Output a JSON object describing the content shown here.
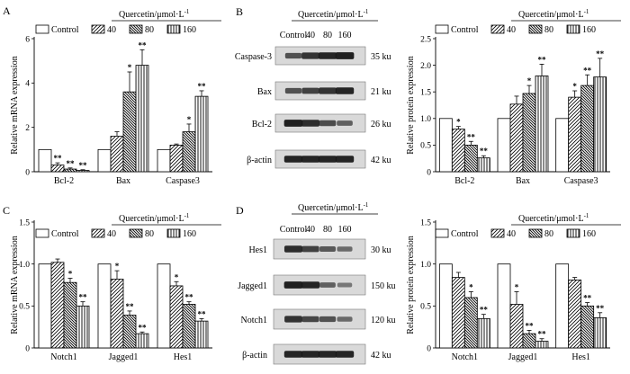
{
  "legend": {
    "title": "Quercetin/μmol·L",
    "title_sup": "-1",
    "entries": [
      "Control",
      "40",
      "80",
      "160"
    ]
  },
  "colors": {
    "bar_fill": "#ffffff",
    "stroke": "#000000",
    "blot_band": "#1a1a1a",
    "blot_bg": "#d9d9d9"
  },
  "chart_data": [
    {
      "type": "bar",
      "panel": "A",
      "ylabel": "Relative mRNA expression",
      "ylim": [
        0,
        6
      ],
      "yticks": [
        0,
        2,
        4,
        6
      ],
      "yticklabels": [
        "0",
        "2",
        "4",
        "6"
      ],
      "categories": [
        "Bcl-2",
        "Bax",
        "Caspase3"
      ],
      "series": [
        {
          "name": "Control",
          "values": [
            1.0,
            1.0,
            1.0
          ],
          "err": [
            0,
            0,
            0
          ],
          "stars": [
            "",
            "",
            ""
          ]
        },
        {
          "name": "40",
          "values": [
            0.3,
            1.6,
            1.2
          ],
          "err": [
            0.1,
            0.2,
            0.05
          ],
          "stars": [
            "**",
            "",
            ""
          ]
        },
        {
          "name": "80",
          "values": [
            0.12,
            3.6,
            1.8
          ],
          "err": [
            0.05,
            0.9,
            0.35
          ],
          "stars": [
            "**",
            "*",
            "*"
          ]
        },
        {
          "name": "160",
          "values": [
            0.06,
            4.8,
            3.4
          ],
          "err": [
            0.03,
            0.7,
            0.25
          ],
          "stars": [
            "**",
            "**",
            "**"
          ]
        }
      ]
    },
    {
      "type": "bar",
      "panel": "",
      "ylabel": "Relative protein expression",
      "ylim": [
        0,
        2.5
      ],
      "yticks": [
        0,
        0.5,
        1.0,
        1.5,
        2.0,
        2.5
      ],
      "yticklabels": [
        "0",
        "0.5",
        "1.0",
        "1.5",
        "2.0",
        "2.5"
      ],
      "categories": [
        "Bcl-2",
        "Bax",
        "Caspase3"
      ],
      "series": [
        {
          "name": "Control",
          "values": [
            1.0,
            1.0,
            1.0
          ],
          "err": [
            0,
            0,
            0
          ],
          "stars": [
            "",
            "",
            ""
          ]
        },
        {
          "name": "40",
          "values": [
            0.8,
            1.27,
            1.4
          ],
          "err": [
            0.05,
            0.15,
            0.12
          ],
          "stars": [
            "*",
            "",
            "*"
          ]
        },
        {
          "name": "80",
          "values": [
            0.5,
            1.47,
            1.62
          ],
          "err": [
            0.07,
            0.15,
            0.2
          ],
          "stars": [
            "**",
            "*",
            "**"
          ]
        },
        {
          "name": "160",
          "values": [
            0.26,
            1.8,
            1.78
          ],
          "err": [
            0.04,
            0.22,
            0.35
          ],
          "stars": [
            "**",
            "**",
            "**"
          ]
        }
      ]
    },
    {
      "type": "bar",
      "panel": "C",
      "ylabel": "Relative mRNA expression",
      "ylim": [
        0,
        1.5
      ],
      "yticks": [
        0,
        0.5,
        1.0,
        1.5
      ],
      "yticklabels": [
        "0",
        "0.5",
        "1.0",
        "1.5"
      ],
      "categories": [
        "Notch1",
        "Jagged1",
        "Hes1"
      ],
      "series": [
        {
          "name": "Control",
          "values": [
            1.0,
            1.0,
            1.0
          ],
          "err": [
            0,
            0,
            0
          ],
          "stars": [
            "",
            "",
            ""
          ]
        },
        {
          "name": "40",
          "values": [
            1.02,
            0.82,
            0.74
          ],
          "err": [
            0.04,
            0.1,
            0.05
          ],
          "stars": [
            "",
            "*",
            "*"
          ]
        },
        {
          "name": "80",
          "values": [
            0.78,
            0.39,
            0.52
          ],
          "err": [
            0.05,
            0.05,
            0.03
          ],
          "stars": [
            "*",
            "**",
            "**"
          ]
        },
        {
          "name": "160",
          "values": [
            0.5,
            0.17,
            0.32
          ],
          "err": [
            0.05,
            0.02,
            0.03
          ],
          "stars": [
            "**",
            "**",
            "**"
          ]
        }
      ]
    },
    {
      "type": "bar",
      "panel": "",
      "ylabel": "Relative protein expression",
      "ylim": [
        0,
        1.5
      ],
      "yticks": [
        0,
        0.5,
        1.0,
        1.5
      ],
      "yticklabels": [
        "0",
        "0.5",
        "1.0",
        "1.5"
      ],
      "categories": [
        "Notch1",
        "Jagged1",
        "Hes1"
      ],
      "series": [
        {
          "name": "Control",
          "values": [
            1.0,
            1.0,
            1.0
          ],
          "err": [
            0,
            0,
            0
          ],
          "stars": [
            "",
            "",
            ""
          ]
        },
        {
          "name": "40",
          "values": [
            0.84,
            0.52,
            0.81
          ],
          "err": [
            0.06,
            0.15,
            0.03
          ],
          "stars": [
            "",
            "*",
            ""
          ]
        },
        {
          "name": "80",
          "values": [
            0.6,
            0.17,
            0.5
          ],
          "err": [
            0.07,
            0.04,
            0.04
          ],
          "stars": [
            "*",
            "**",
            "**"
          ]
        },
        {
          "name": "160",
          "values": [
            0.35,
            0.08,
            0.36
          ],
          "err": [
            0.05,
            0.03,
            0.06
          ],
          "stars": [
            "**",
            "**",
            "**"
          ]
        }
      ]
    }
  ],
  "blots": [
    {
      "panel": "B",
      "lanes": [
        "Control",
        "40",
        "80",
        "160"
      ],
      "rows": [
        {
          "name": "Caspase-3",
          "size": "35 ku",
          "intensity": [
            0.55,
            0.8,
            0.9,
            0.95
          ]
        },
        {
          "name": "Bax",
          "size": "21 ku",
          "intensity": [
            0.55,
            0.7,
            0.8,
            0.9
          ]
        },
        {
          "name": "Bcl-2",
          "size": "26 ku",
          "intensity": [
            0.95,
            0.85,
            0.6,
            0.45
          ]
        },
        {
          "name": "β-actin",
          "size": "42 ku",
          "intensity": [
            0.9,
            0.9,
            0.9,
            0.9
          ]
        }
      ]
    },
    {
      "panel": "D",
      "lanes": [
        "Control",
        "40",
        "80",
        "160"
      ],
      "rows": [
        {
          "name": "Hes1",
          "size": "30 ku",
          "intensity": [
            0.85,
            0.7,
            0.5,
            0.35
          ]
        },
        {
          "name": "Jagged1",
          "size": "150 ku",
          "intensity": [
            0.95,
            0.9,
            0.45,
            0.25
          ]
        },
        {
          "name": "Notch1",
          "size": "120 ku",
          "intensity": [
            0.8,
            0.65,
            0.55,
            0.35
          ]
        },
        {
          "name": "β-actin",
          "size": "42 ku",
          "intensity": [
            0.9,
            0.9,
            0.9,
            0.9
          ]
        }
      ]
    }
  ]
}
